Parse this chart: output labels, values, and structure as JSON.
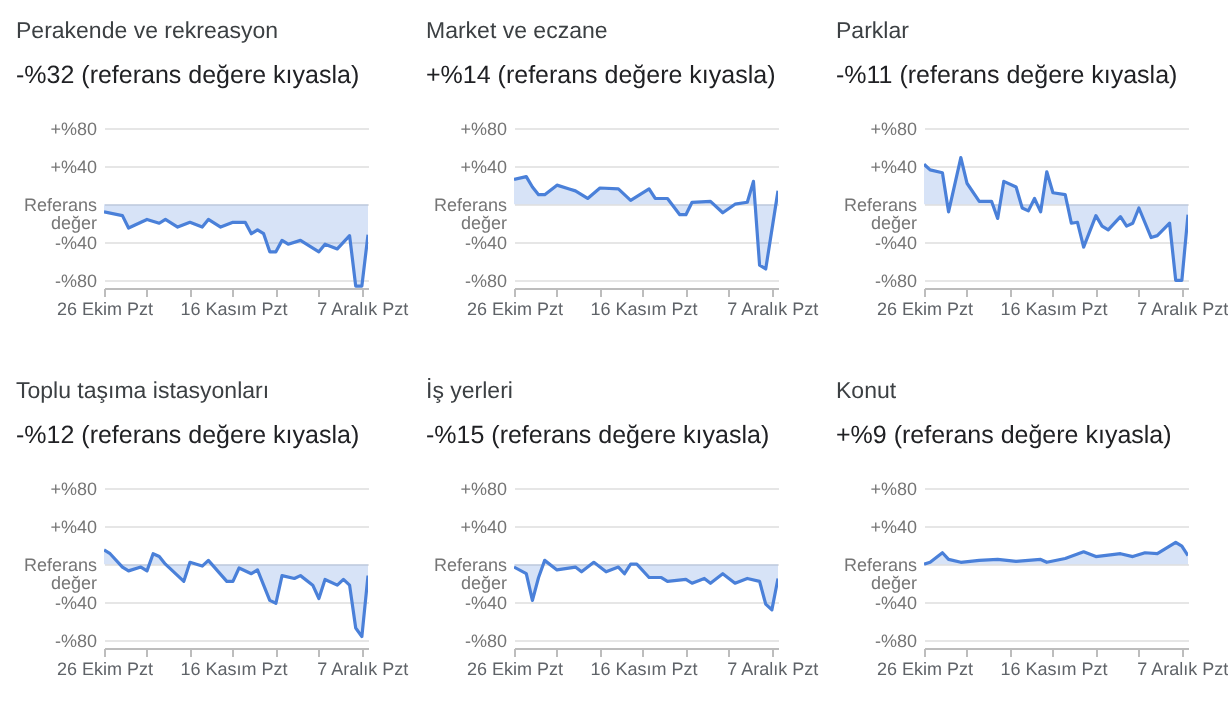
{
  "chart_data": [
    {
      "type": "area",
      "title": "Perakende ve rekreasyon",
      "subtitle": "-%32 (referans değere kıyasla)",
      "color": "#4a80d9",
      "grid": "y",
      "ylim": [
        -88,
        80
      ],
      "yticks": [
        {
          "value": 80,
          "label": "+%80"
        },
        {
          "value": 40,
          "label": "+%40"
        },
        {
          "value": 0,
          "label": "Referans değer"
        },
        {
          "value": -40,
          "label": "-%40"
        },
        {
          "value": -80,
          "label": "-%80"
        }
      ],
      "xlim": [
        "--10-26",
        "--12-08"
      ],
      "xticks": [
        {
          "value": "--10-26",
          "label": "26 Ekim Pzt"
        },
        {
          "value": "--11-02",
          "label": null
        },
        {
          "value": "--11-09",
          "label": null
        },
        {
          "value": "--11-16",
          "label": "16 Kasım Pzt"
        },
        {
          "value": "--11-23",
          "label": null
        },
        {
          "value": "--11-30",
          "label": null
        },
        {
          "value": "--12-07",
          "label": "7 Aralık Pzt"
        }
      ],
      "x": [
        "--10-26",
        "--10-29",
        "--10-30",
        "--11-02",
        "--11-04",
        "--11-05",
        "--11-07",
        "--11-09",
        "--11-11",
        "--11-12",
        "--11-14",
        "--11-16",
        "--11-18",
        "--11-19",
        "--11-20",
        "--11-21",
        "--11-22",
        "--11-23",
        "--11-24",
        "--11-25",
        "--11-27",
        "--11-30",
        "--12-01",
        "--12-03",
        "--12-05",
        "--12-06",
        "--12-07",
        "--12-08"
      ],
      "values": [
        -8,
        -12,
        -25,
        -16,
        -20,
        -16,
        -24,
        -19,
        -24,
        -16,
        -24,
        -19,
        -19,
        -31,
        -27,
        -31,
        -50,
        -50,
        -38,
        -42,
        -38,
        -50,
        -42,
        -47,
        -33,
        -86,
        -86,
        -32
      ]
    },
    {
      "type": "area",
      "title": "Market ve eczane",
      "subtitle": "+%14 (referans değere kıyasla)",
      "color": "#4a80d9",
      "grid": "y",
      "ylim": [
        -88,
        80
      ],
      "yticks": [
        {
          "value": 80,
          "label": "+%80"
        },
        {
          "value": 40,
          "label": "+%40"
        },
        {
          "value": 0,
          "label": "Referans değer"
        },
        {
          "value": -40,
          "label": "-%40"
        },
        {
          "value": -80,
          "label": "-%80"
        }
      ],
      "xlim": [
        "--10-26",
        "--12-08"
      ],
      "xticks": [
        {
          "value": "--10-26",
          "label": "26 Ekim Pzt"
        },
        {
          "value": "--11-02",
          "label": null
        },
        {
          "value": "--11-09",
          "label": null
        },
        {
          "value": "--11-16",
          "label": "16 Kasım Pzt"
        },
        {
          "value": "--11-23",
          "label": null
        },
        {
          "value": "--11-30",
          "label": null
        },
        {
          "value": "--12-07",
          "label": "7 Aralık Pzt"
        }
      ],
      "x": [
        "--10-26",
        "--10-28",
        "--10-29",
        "--10-30",
        "--10-31",
        "--11-02",
        "--11-04",
        "--11-05",
        "--11-07",
        "--11-09",
        "--11-12",
        "--11-14",
        "--11-17",
        "--11-18",
        "--11-20",
        "--11-22",
        "--11-23",
        "--11-24",
        "--11-27",
        "--11-29",
        "--12-01",
        "--12-03",
        "--12-04",
        "--12-05",
        "--12-06",
        "--12-08"
      ],
      "values": [
        26,
        29,
        18,
        10,
        10,
        20,
        16,
        14,
        6,
        17,
        16,
        4,
        16,
        6,
        6,
        -11,
        -11,
        2,
        3,
        -9,
        0,
        2,
        24,
        -64,
        -68,
        14
      ]
    },
    {
      "type": "area",
      "title": "Parklar",
      "subtitle": "-%11 (referans değere kıyasla)",
      "color": "#4a80d9",
      "grid": "y",
      "ylim": [
        -88,
        80
      ],
      "yticks": [
        {
          "value": 80,
          "label": "+%80"
        },
        {
          "value": 40,
          "label": "+%40"
        },
        {
          "value": 0,
          "label": "Referans değer"
        },
        {
          "value": -40,
          "label": "-%40"
        },
        {
          "value": -80,
          "label": "-%80"
        }
      ],
      "xlim": [
        "--10-26",
        "--12-08"
      ],
      "xticks": [
        {
          "value": "--10-26",
          "label": "26 Ekim Pzt"
        },
        {
          "value": "--11-02",
          "label": null
        },
        {
          "value": "--11-09",
          "label": null
        },
        {
          "value": "--11-16",
          "label": "16 Kasım Pzt"
        },
        {
          "value": "--11-23",
          "label": null
        },
        {
          "value": "--11-30",
          "label": null
        },
        {
          "value": "--12-07",
          "label": "7 Aralık Pzt"
        }
      ],
      "x": [
        "--10-26",
        "--10-27",
        "--10-29",
        "--10-30",
        "--11-01",
        "--11-02",
        "--11-04",
        "--11-06",
        "--11-07",
        "--11-08",
        "--11-10",
        "--11-11",
        "--11-12",
        "--11-13",
        "--11-14",
        "--11-15",
        "--11-16",
        "--11-18",
        "--11-19",
        "--11-20",
        "--11-21",
        "--11-23",
        "--11-24",
        "--11-25",
        "--11-27",
        "--11-28",
        "--11-29",
        "--11-30",
        "--12-02",
        "--12-03",
        "--12-05",
        "--12-06",
        "--12-07",
        "--12-08"
      ],
      "values": [
        42,
        36,
        33,
        -8,
        49,
        22,
        3,
        3,
        -15,
        24,
        18,
        -4,
        -7,
        6,
        -8,
        34,
        12,
        10,
        -20,
        -19,
        -45,
        -12,
        -23,
        -27,
        -13,
        -23,
        -20,
        -4,
        -35,
        -33,
        -20,
        -80,
        -80,
        -11
      ]
    },
    {
      "type": "area",
      "title": "Toplu taşıma istasyonları",
      "subtitle": "-%12 (referans değere kıyasla)",
      "color": "#4a80d9",
      "grid": "y",
      "ylim": [
        -88,
        80
      ],
      "yticks": [
        {
          "value": 80,
          "label": "+%80"
        },
        {
          "value": 40,
          "label": "+%40"
        },
        {
          "value": 0,
          "label": "Referans değer"
        },
        {
          "value": -40,
          "label": "-%40"
        },
        {
          "value": -80,
          "label": "-%80"
        }
      ],
      "xlim": [
        "--10-26",
        "--12-08"
      ],
      "xticks": [
        {
          "value": "--10-26",
          "label": "26 Ekim Pzt"
        },
        {
          "value": "--11-02",
          "label": null
        },
        {
          "value": "--11-09",
          "label": null
        },
        {
          "value": "--11-16",
          "label": "16 Kasım Pzt"
        },
        {
          "value": "--11-23",
          "label": null
        },
        {
          "value": "--11-30",
          "label": null
        },
        {
          "value": "--12-07",
          "label": "7 Aralık Pzt"
        }
      ],
      "x": [
        "--10-26",
        "--10-27",
        "--10-29",
        "--10-30",
        "--11-01",
        "--11-02",
        "--11-03",
        "--11-04",
        "--11-05",
        "--11-08",
        "--11-09",
        "--11-11",
        "--11-12",
        "--11-15",
        "--11-16",
        "--11-17",
        "--11-19",
        "--11-20",
        "--11-22",
        "--11-23",
        "--11-24",
        "--11-26",
        "--11-27",
        "--11-29",
        "--11-30",
        "--12-01",
        "--12-03",
        "--12-04",
        "--12-05",
        "--12-06",
        "--12-07",
        "--12-08"
      ],
      "values": [
        15,
        11,
        -3,
        -7,
        -3,
        -7,
        11,
        8,
        0,
        -18,
        2,
        -2,
        4,
        -18,
        -18,
        -4,
        -10,
        -6,
        -38,
        -41,
        -12,
        -15,
        -12,
        -22,
        -36,
        -16,
        -22,
        -16,
        -22,
        -67,
        -76,
        -12
      ]
    },
    {
      "type": "area",
      "title": "İş yerleri",
      "subtitle": "-%15 (referans değere kıyasla)",
      "color": "#4a80d9",
      "grid": "y",
      "ylim": [
        -88,
        80
      ],
      "yticks": [
        {
          "value": 80,
          "label": "+%80"
        },
        {
          "value": 40,
          "label": "+%40"
        },
        {
          "value": 0,
          "label": "Referans değer"
        },
        {
          "value": -40,
          "label": "-%40"
        },
        {
          "value": -80,
          "label": "-%80"
        }
      ],
      "xlim": [
        "--10-26",
        "--12-08"
      ],
      "xticks": [
        {
          "value": "--10-26",
          "label": "26 Ekim Pzt"
        },
        {
          "value": "--11-02",
          "label": null
        },
        {
          "value": "--11-09",
          "label": null
        },
        {
          "value": "--11-16",
          "label": "16 Kasım Pzt"
        },
        {
          "value": "--11-23",
          "label": null
        },
        {
          "value": "--11-30",
          "label": null
        },
        {
          "value": "--12-07",
          "label": "7 Aralık Pzt"
        }
      ],
      "x": [
        "--10-26",
        "--10-28",
        "--10-29",
        "--10-30",
        "--10-31",
        "--11-02",
        "--11-05",
        "--11-06",
        "--11-08",
        "--11-10",
        "--11-12",
        "--11-13",
        "--11-14",
        "--11-15",
        "--11-17",
        "--11-19",
        "--11-20",
        "--11-23",
        "--11-24",
        "--11-26",
        "--11-27",
        "--11-29",
        "--12-01",
        "--12-03",
        "--12-05",
        "--12-06",
        "--12-07",
        "--12-08"
      ],
      "values": [
        -3,
        -10,
        -38,
        -14,
        4,
        -6,
        -3,
        -8,
        2,
        -8,
        -3,
        -10,
        0,
        0,
        -14,
        -14,
        -18,
        -16,
        -20,
        -15,
        -20,
        -10,
        -20,
        -15,
        -18,
        -42,
        -48,
        -15
      ]
    },
    {
      "type": "area",
      "title": "Konut",
      "subtitle": "+%9 (referans değere kıyasla)",
      "color": "#4a80d9",
      "grid": "y",
      "ylim": [
        -88,
        80
      ],
      "yticks": [
        {
          "value": 80,
          "label": "+%80"
        },
        {
          "value": 40,
          "label": "+%40"
        },
        {
          "value": 0,
          "label": "Referans değer"
        },
        {
          "value": -40,
          "label": "-%40"
        },
        {
          "value": -80,
          "label": "-%80"
        }
      ],
      "xlim": [
        "--10-26",
        "--12-08"
      ],
      "xticks": [
        {
          "value": "--10-26",
          "label": "26 Ekim Pzt"
        },
        {
          "value": "--11-02",
          "label": null
        },
        {
          "value": "--11-09",
          "label": null
        },
        {
          "value": "--11-16",
          "label": "16 Kasım Pzt"
        },
        {
          "value": "--11-23",
          "label": null
        },
        {
          "value": "--11-30",
          "label": null
        },
        {
          "value": "--12-07",
          "label": "7 Aralık Pzt"
        }
      ],
      "x": [
        "--10-26",
        "--10-27",
        "--10-29",
        "--10-30",
        "--11-01",
        "--11-04",
        "--11-07",
        "--11-10",
        "--11-14",
        "--11-15",
        "--11-18",
        "--11-21",
        "--11-23",
        "--11-27",
        "--11-29",
        "--12-01",
        "--12-03",
        "--12-06",
        "--12-07",
        "--12-08"
      ],
      "values": [
        0,
        2,
        12,
        5,
        2,
        4,
        5,
        3,
        5,
        2,
        6,
        13,
        8,
        11,
        8,
        12,
        11,
        23,
        19,
        9
      ]
    }
  ]
}
